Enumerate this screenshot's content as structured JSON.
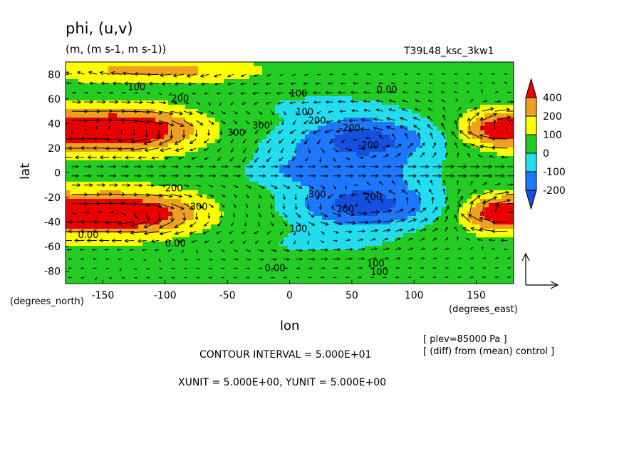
{
  "header": {
    "title": "phi, (u,v)",
    "units": "(m, (m s-1, m s-1))",
    "run_id": "T39L48_ksc_3kw1"
  },
  "chart_data": {
    "type": "heatmap",
    "subtype": "filled contour map with wind vectors",
    "xlabel": "lon",
    "ylabel": "lat",
    "x_unit_label": "(degrees_east)",
    "y_unit_label": "(degrees_north)",
    "xlim": [
      -180,
      180
    ],
    "ylim": [
      -90,
      90
    ],
    "x_ticks": [
      -150,
      -100,
      -50,
      0,
      50,
      100,
      150
    ],
    "y_ticks": [
      80,
      60,
      40,
      20,
      0,
      -20,
      -40,
      -60,
      -80
    ],
    "color_scale": {
      "labels": [
        "400",
        "200",
        "100",
        "0",
        "-100",
        "-200"
      ],
      "colors": [
        "#e80000",
        "#f0a020",
        "#ffff00",
        "#22cc22",
        "#22ddee",
        "#1e78ff",
        "#1450dd"
      ]
    },
    "contour_labels": [
      "100",
      "200",
      "100",
      "0.00",
      "100",
      "200",
      "300",
      "300",
      "-200",
      "-200",
      "300",
      "200",
      "-200",
      "200",
      "300",
      "100",
      "0.00",
      "0.00",
      "100",
      "0.00",
      "100"
    ],
    "notes": {
      "plev": "[ plev=85000 Pa ]",
      "diff": "[ (diff) from (mean) control ]",
      "contour_interval": "CONTOUR INTERVAL = 5.000E+01",
      "vector_units": "XUNIT = 5.000E+00, YUNIT = 5.000E+00"
    },
    "regions": [
      {
        "lon": -130,
        "lat": 35,
        "value": 420
      },
      {
        "lon": -130,
        "lat": -33,
        "value": 420
      },
      {
        "lon": 165,
        "lat": 35,
        "value": 420
      },
      {
        "lon": 165,
        "lat": -33,
        "value": 420
      },
      {
        "lon": 60,
        "lat": 28,
        "value": -250
      },
      {
        "lon": 60,
        "lat": -28,
        "value": -250
      },
      {
        "lon": 40,
        "lat": 0,
        "value": -180
      },
      {
        "lon": -120,
        "lat": 82,
        "value": 220
      },
      {
        "lon": 30,
        "lat": 80,
        "value": 120
      },
      {
        "lon": 0,
        "lat": -80,
        "value": 130
      }
    ]
  }
}
